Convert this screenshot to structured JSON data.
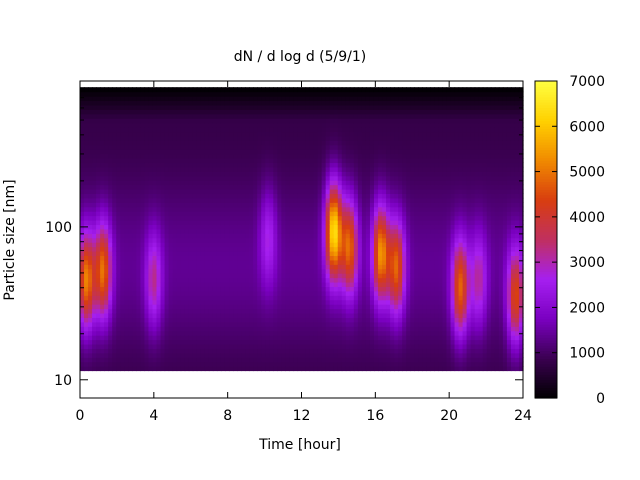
{
  "chart_data": {
    "type": "heatmap",
    "title": "dN / d log d (5/9/1)",
    "xlabel": "Time [hour]",
    "ylabel": "Particle size [nm]",
    "xlim": [
      0,
      24
    ],
    "x_ticks": [
      0,
      4,
      8,
      12,
      16,
      20,
      24
    ],
    "y_scale": "log",
    "ylim": [
      7.6,
      900
    ],
    "y_ticks": [
      10,
      100
    ],
    "y_minor_ticks": [
      20,
      30,
      40,
      50,
      60,
      70,
      80,
      90,
      200,
      300,
      400,
      500,
      600,
      700,
      800,
      900
    ],
    "color_scale": {
      "range": [
        0,
        7000
      ],
      "ticks": [
        0,
        1000,
        2000,
        3000,
        4000,
        5000,
        6000,
        7000
      ],
      "palette": [
        "#000000",
        "#3a0050",
        "#7a00c0",
        "#a51ff0",
        "#c03060",
        "#d83d10",
        "#f08a00",
        "#ffd000",
        "#ffff40"
      ]
    },
    "size_range_nm": [
      11.5,
      820
    ],
    "background_level": 1400,
    "events": [
      {
        "t": 0.35,
        "d_nm": 45,
        "peak": 4600
      },
      {
        "t": 1.25,
        "d_nm": 52,
        "peak": 4400
      },
      {
        "t": 4.0,
        "d_nm": 45,
        "peak": 2700
      },
      {
        "t": 10.2,
        "d_nm": 85,
        "peak": 2200
      },
      {
        "t": 13.75,
        "d_nm": 95,
        "peak": 5900
      },
      {
        "t": 14.6,
        "d_nm": 75,
        "peak": 4300
      },
      {
        "t": 16.3,
        "d_nm": 68,
        "peak": 4800
      },
      {
        "t": 17.15,
        "d_nm": 55,
        "peak": 4200
      },
      {
        "t": 20.6,
        "d_nm": 40,
        "peak": 4300
      },
      {
        "t": 21.6,
        "d_nm": 45,
        "peak": 2600
      },
      {
        "t": 23.6,
        "d_nm": 35,
        "peak": 4000
      }
    ]
  }
}
